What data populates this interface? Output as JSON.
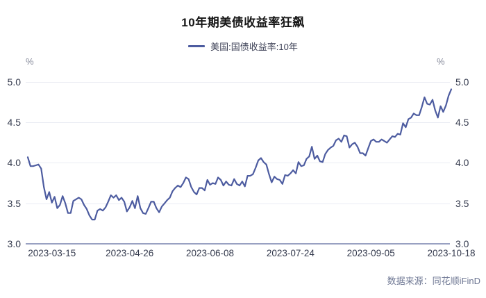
{
  "title": "10年期美债收益率狂飙",
  "legend": {
    "label": "美国:国债收益率:10年"
  },
  "footer": {
    "source": "数据来源：同花顺iFinD"
  },
  "axes": {
    "unit_left": "%",
    "unit_right": "%",
    "y_ticks": [
      "5.0",
      "4.5",
      "4.0",
      "3.5",
      "3.0"
    ]
  },
  "chart_data": {
    "type": "line",
    "title": "10年期美债收益率狂飙",
    "xlabel": "",
    "ylabel": "%",
    "ylim": [
      3.0,
      5.0
    ],
    "y_tick_step": 0.5,
    "grid": "horizontal",
    "legend_position": "top",
    "x_tick_labels": [
      "2023-03-15",
      "2023-04-26",
      "2023-06-08",
      "2023-07-24",
      "2023-09-05",
      "2023-10-18"
    ],
    "series": [
      {
        "name": "美国:国债收益率:10年",
        "color": "#4d5ca0",
        "dates": [
          "2023-03-02",
          "2023-03-03",
          "2023-03-06",
          "2023-03-07",
          "2023-03-08",
          "2023-03-09",
          "2023-03-10",
          "2023-03-13",
          "2023-03-14",
          "2023-03-15",
          "2023-03-16",
          "2023-03-17",
          "2023-03-20",
          "2023-03-21",
          "2023-03-22",
          "2023-03-23",
          "2023-03-24",
          "2023-03-27",
          "2023-03-28",
          "2023-03-29",
          "2023-03-30",
          "2023-03-31",
          "2023-04-03",
          "2023-04-04",
          "2023-04-05",
          "2023-04-06",
          "2023-04-10",
          "2023-04-11",
          "2023-04-12",
          "2023-04-13",
          "2023-04-14",
          "2023-04-17",
          "2023-04-18",
          "2023-04-19",
          "2023-04-20",
          "2023-04-21",
          "2023-04-24",
          "2023-04-25",
          "2023-04-26",
          "2023-04-27",
          "2023-04-28",
          "2023-05-01",
          "2023-05-02",
          "2023-05-03",
          "2023-05-04",
          "2023-05-05",
          "2023-05-08",
          "2023-05-09",
          "2023-05-10",
          "2023-05-11",
          "2023-05-12",
          "2023-05-15",
          "2023-05-16",
          "2023-05-17",
          "2023-05-18",
          "2023-05-19",
          "2023-05-22",
          "2023-05-23",
          "2023-05-24",
          "2023-05-25",
          "2023-05-26",
          "2023-05-30",
          "2023-05-31",
          "2023-06-01",
          "2023-06-02",
          "2023-06-05",
          "2023-06-06",
          "2023-06-07",
          "2023-06-08",
          "2023-06-09",
          "2023-06-12",
          "2023-06-13",
          "2023-06-14",
          "2023-06-15",
          "2023-06-16",
          "2023-06-20",
          "2023-06-21",
          "2023-06-22",
          "2023-06-23",
          "2023-06-26",
          "2023-06-27",
          "2023-06-28",
          "2023-06-29",
          "2023-06-30",
          "2023-07-03",
          "2023-07-05",
          "2023-07-06",
          "2023-07-07",
          "2023-07-10",
          "2023-07-11",
          "2023-07-12",
          "2023-07-13",
          "2023-07-14",
          "2023-07-17",
          "2023-07-18",
          "2023-07-19",
          "2023-07-20",
          "2023-07-21",
          "2023-07-24",
          "2023-07-25",
          "2023-07-26",
          "2023-07-27",
          "2023-07-28",
          "2023-07-31",
          "2023-08-01",
          "2023-08-02",
          "2023-08-03",
          "2023-08-04",
          "2023-08-07",
          "2023-08-08",
          "2023-08-09",
          "2023-08-10",
          "2023-08-11",
          "2023-08-14",
          "2023-08-15",
          "2023-08-16",
          "2023-08-17",
          "2023-08-18",
          "2023-08-21",
          "2023-08-22",
          "2023-08-23",
          "2023-08-24",
          "2023-08-25",
          "2023-08-28",
          "2023-08-29",
          "2023-08-30",
          "2023-08-31",
          "2023-09-01",
          "2023-09-05",
          "2023-09-06",
          "2023-09-07",
          "2023-09-08",
          "2023-09-11",
          "2023-09-12",
          "2023-09-13",
          "2023-09-14",
          "2023-09-15",
          "2023-09-18",
          "2023-09-19",
          "2023-09-20",
          "2023-09-21",
          "2023-09-22",
          "2023-09-25",
          "2023-09-26",
          "2023-09-27",
          "2023-09-28",
          "2023-09-29",
          "2023-10-02",
          "2023-10-03",
          "2023-10-04",
          "2023-10-05",
          "2023-10-06",
          "2023-10-10",
          "2023-10-11",
          "2023-10-12",
          "2023-10-13",
          "2023-10-16",
          "2023-10-17",
          "2023-10-18"
        ],
        "values": [
          4.07,
          3.96,
          3.96,
          3.97,
          3.98,
          3.93,
          3.7,
          3.55,
          3.64,
          3.51,
          3.58,
          3.44,
          3.48,
          3.59,
          3.5,
          3.38,
          3.38,
          3.53,
          3.55,
          3.57,
          3.55,
          3.48,
          3.43,
          3.35,
          3.3,
          3.3,
          3.41,
          3.43,
          3.41,
          3.45,
          3.52,
          3.6,
          3.57,
          3.6,
          3.54,
          3.57,
          3.52,
          3.4,
          3.45,
          3.53,
          3.44,
          3.59,
          3.44,
          3.38,
          3.37,
          3.44,
          3.52,
          3.52,
          3.44,
          3.39,
          3.46,
          3.5,
          3.54,
          3.57,
          3.65,
          3.69,
          3.72,
          3.7,
          3.75,
          3.82,
          3.8,
          3.7,
          3.64,
          3.61,
          3.69,
          3.69,
          3.66,
          3.79,
          3.73,
          3.75,
          3.74,
          3.82,
          3.79,
          3.72,
          3.77,
          3.73,
          3.72,
          3.8,
          3.74,
          3.72,
          3.77,
          3.71,
          3.84,
          3.84,
          3.86,
          3.94,
          4.03,
          4.06,
          4.01,
          3.98,
          3.86,
          3.76,
          3.83,
          3.8,
          3.79,
          3.74,
          3.85,
          3.84,
          3.87,
          3.91,
          3.87,
          4.01,
          3.96,
          3.97,
          4.05,
          4.08,
          4.2,
          4.05,
          4.09,
          4.02,
          4.01,
          4.11,
          4.16,
          4.19,
          4.21,
          4.28,
          4.3,
          4.26,
          4.34,
          4.33,
          4.19,
          4.23,
          4.25,
          4.2,
          4.12,
          4.12,
          4.09,
          4.18,
          4.27,
          4.29,
          4.26,
          4.26,
          4.29,
          4.27,
          4.25,
          4.29,
          4.33,
          4.32,
          4.36,
          4.35,
          4.49,
          4.44,
          4.54,
          4.56,
          4.61,
          4.59,
          4.59,
          4.69,
          4.81,
          4.73,
          4.72,
          4.78,
          4.65,
          4.56,
          4.7,
          4.63,
          4.71,
          4.83,
          4.91
        ]
      }
    ]
  }
}
